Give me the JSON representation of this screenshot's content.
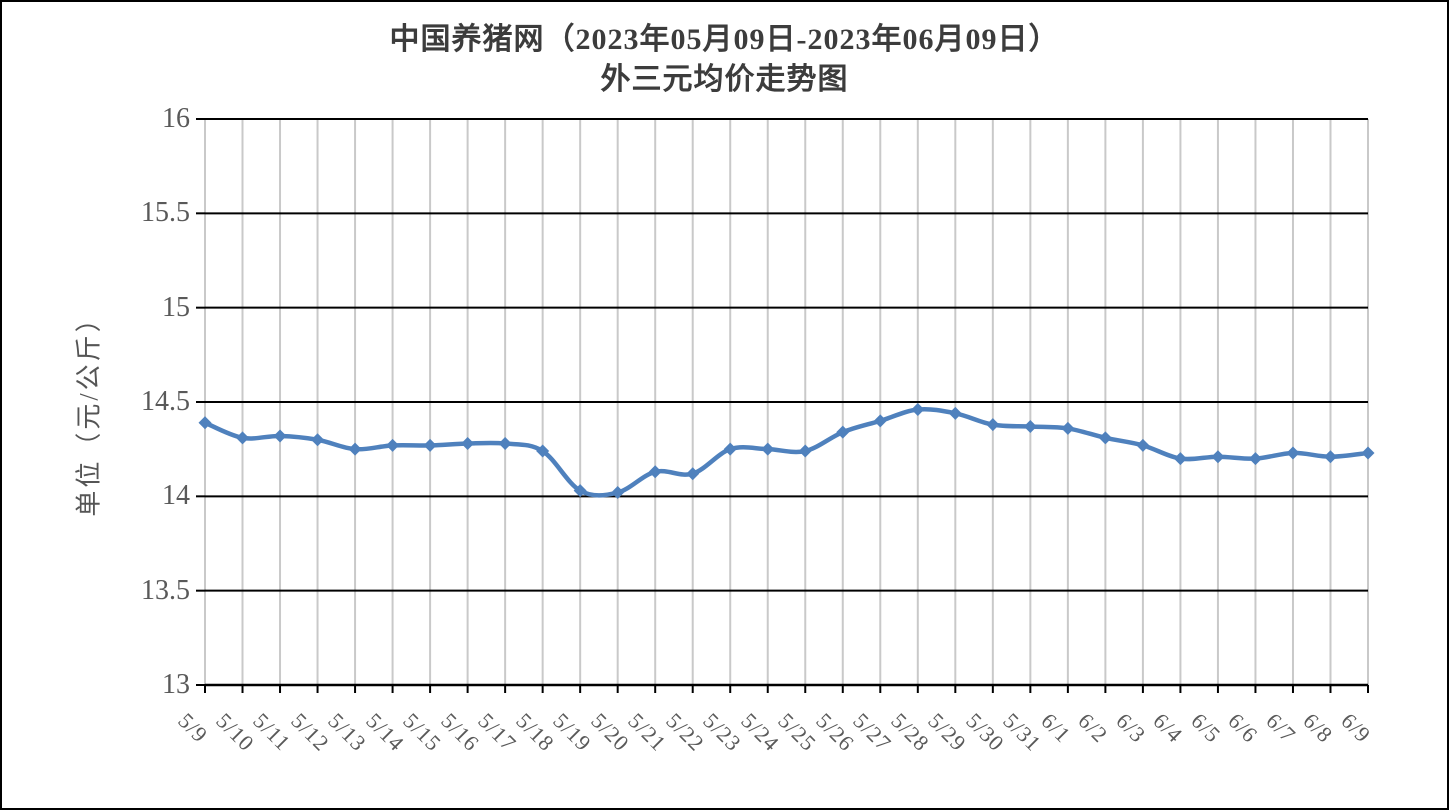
{
  "chart_data": {
    "type": "line",
    "title": "中国养猪网（2023年05月09日-2023年06月09日）",
    "subtitle": "外三元均价走势图",
    "ylabel": "单位（元/公斤）",
    "xlabel": "",
    "categories": [
      "5/9",
      "5/10",
      "5/11",
      "5/12",
      "5/13",
      "5/14",
      "5/15",
      "5/16",
      "5/17",
      "5/18",
      "5/19",
      "5/20",
      "5/21",
      "5/22",
      "5/23",
      "5/24",
      "5/25",
      "5/26",
      "5/27",
      "5/28",
      "5/29",
      "5/30",
      "5/31",
      "6/1",
      "6/2",
      "6/3",
      "6/4",
      "6/5",
      "6/6",
      "6/7",
      "6/8",
      "6/9"
    ],
    "values": [
      14.39,
      14.31,
      14.32,
      14.3,
      14.25,
      14.27,
      14.27,
      14.28,
      14.28,
      14.24,
      14.03,
      14.02,
      14.13,
      14.12,
      14.25,
      14.25,
      14.24,
      14.34,
      14.4,
      14.46,
      14.44,
      14.38,
      14.37,
      14.36,
      14.31,
      14.27,
      14.2,
      14.21,
      14.2,
      14.23,
      14.21,
      14.23
    ],
    "ylim": [
      13,
      16
    ],
    "yticks": [
      16,
      15.5,
      15,
      14.5,
      14,
      13.5,
      13
    ],
    "grid": {
      "horizontal": true,
      "vertical": true
    },
    "legend": "none",
    "line_style": "smooth",
    "marker": "diamond",
    "colors": {
      "series": "#4f81bd",
      "h_gridline": "#000000",
      "v_gridline": "#c9c9c9",
      "axis": "#000000",
      "title": "#3c3c3c",
      "tick_label": "#595959",
      "background": "#ffffff",
      "border": "#000000"
    }
  }
}
